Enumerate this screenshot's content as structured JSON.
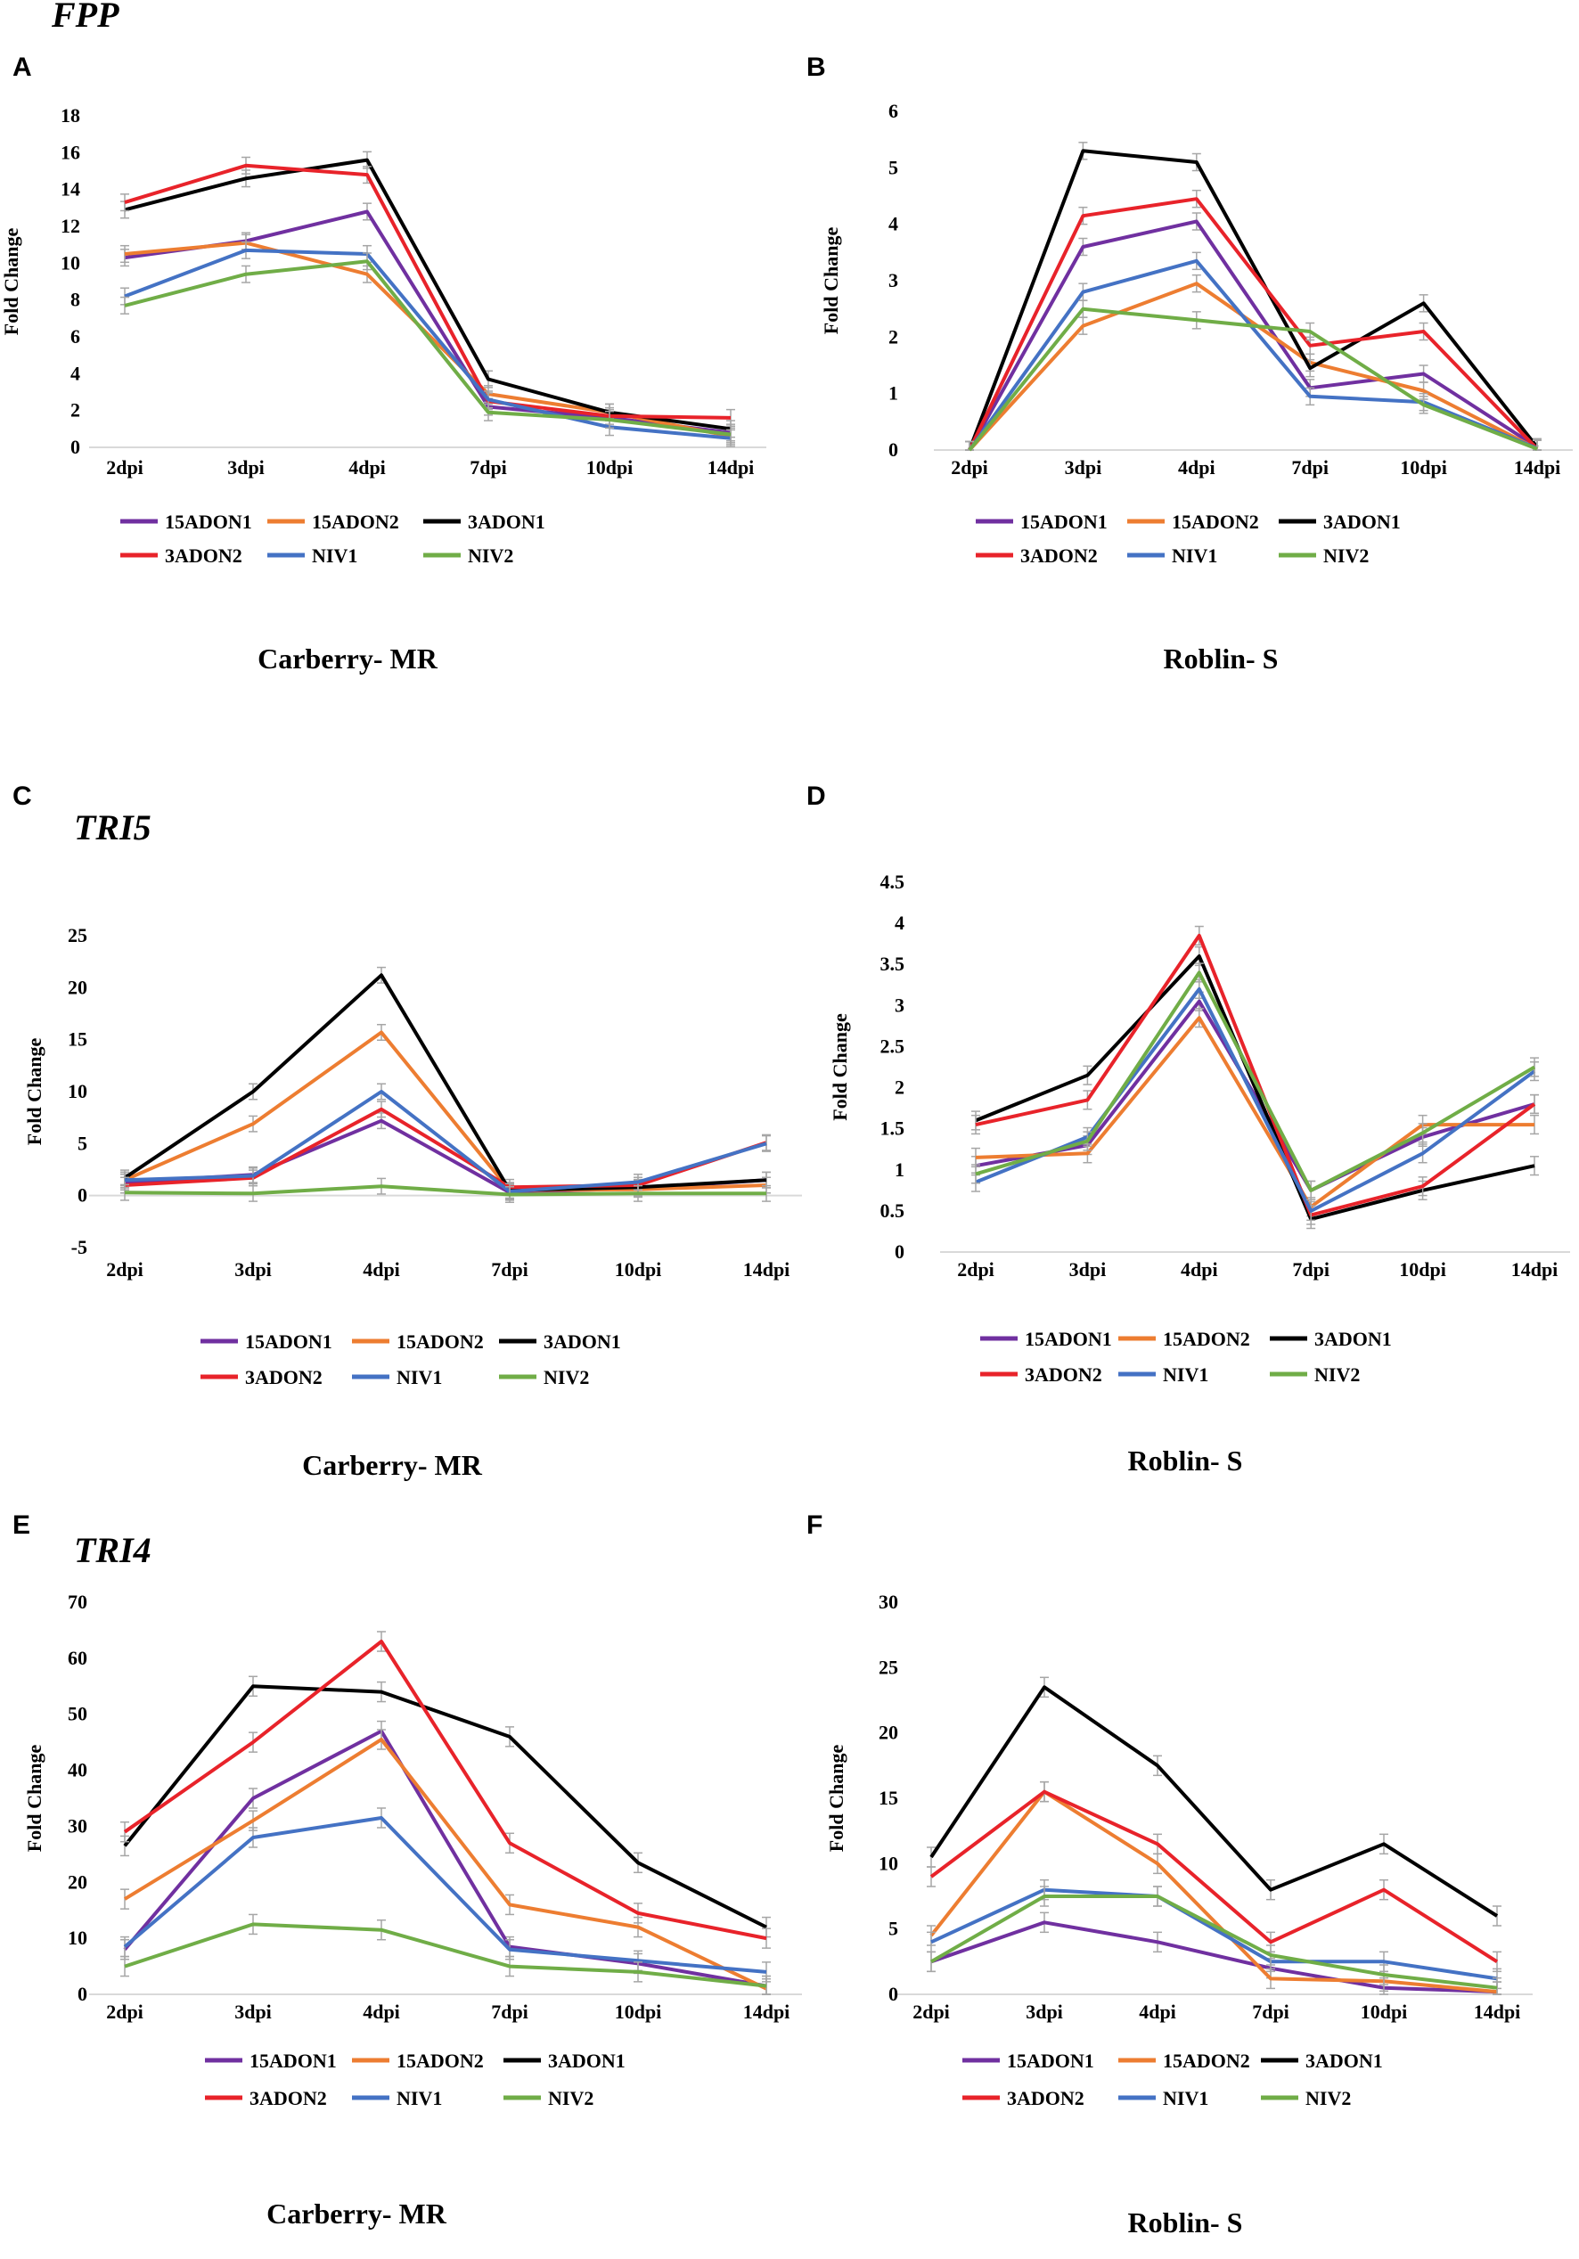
{
  "figure": {
    "series_names": [
      "15ADON1",
      "15ADON2",
      "3ADON1",
      "3ADON2",
      "NIV1",
      "NIV2"
    ],
    "series_colors": [
      "#7030A0",
      "#ED7D31",
      "#000000",
      "#E8232A",
      "#4472C4",
      "#70AD47"
    ]
  },
  "chart_data": [
    {
      "id": "A",
      "letter": "A",
      "gene": "FPP",
      "type": "line",
      "title": "",
      "xlabel": "Carberry- MR",
      "ylabel": "Fold Change",
      "categories": [
        "2dpi",
        "3dpi",
        "4dpi",
        "7dpi",
        "10dpi",
        "14dpi"
      ],
      "ylim": [
        0,
        18
      ],
      "yticks": [
        {
          "v": 0,
          "t": "0"
        },
        {
          "v": 2,
          "t": "2"
        },
        {
          "v": 4,
          "t": "4"
        },
        {
          "v": 6,
          "t": "6"
        },
        {
          "v": 8,
          "t": "8"
        },
        {
          "v": 10,
          "t": "10"
        },
        {
          "v": 12,
          "t": "12"
        },
        {
          "v": 14,
          "t": "14"
        },
        {
          "v": 16,
          "t": "16"
        },
        {
          "v": 18,
          "t": "18"
        }
      ],
      "series": [
        {
          "name": "15ADON1",
          "values": [
            10.3,
            11.2,
            12.8,
            2.2,
            1.6,
            0.8
          ]
        },
        {
          "name": "15ADON2",
          "values": [
            10.5,
            11.1,
            9.4,
            2.9,
            1.9,
            0.6
          ]
        },
        {
          "name": "3ADON1",
          "values": [
            12.9,
            14.6,
            15.6,
            3.7,
            1.9,
            1.0
          ]
        },
        {
          "name": "3ADON2",
          "values": [
            13.3,
            15.3,
            14.8,
            2.5,
            1.7,
            1.6
          ]
        },
        {
          "name": "NIV1",
          "values": [
            8.2,
            10.7,
            10.5,
            2.6,
            1.1,
            0.5
          ]
        },
        {
          "name": "NIV2",
          "values": [
            7.7,
            9.4,
            10.1,
            1.9,
            1.5,
            0.7
          ]
        }
      ]
    },
    {
      "id": "B",
      "letter": "B",
      "gene": "",
      "type": "line",
      "title": "",
      "xlabel": "Roblin- S",
      "ylabel": "Fold Change",
      "categories": [
        "2dpi",
        "3dpi",
        "4dpi",
        "7dpi",
        "10dpi",
        "14dpi"
      ],
      "ylim": [
        0,
        6
      ],
      "yticks": [
        {
          "v": 0,
          "t": "0"
        },
        {
          "v": 1,
          "t": "1"
        },
        {
          "v": 2,
          "t": "2"
        },
        {
          "v": 3,
          "t": "3"
        },
        {
          "v": 4,
          "t": "4"
        },
        {
          "v": 5,
          "t": "5"
        },
        {
          "v": 6,
          "t": "6"
        }
      ],
      "series": [
        {
          "name": "15ADON1",
          "values": [
            0,
            3.6,
            4.05,
            1.1,
            1.35,
            0.05
          ]
        },
        {
          "name": "15ADON2",
          "values": [
            0,
            2.2,
            2.95,
            1.55,
            1.05,
            0.02
          ]
        },
        {
          "name": "3ADON1",
          "values": [
            0,
            5.3,
            5.1,
            1.45,
            2.6,
            0.05
          ]
        },
        {
          "name": "3ADON2",
          "values": [
            0,
            4.15,
            4.45,
            1.85,
            2.1,
            0.02
          ]
        },
        {
          "name": "NIV1",
          "values": [
            0,
            2.8,
            3.35,
            0.95,
            0.85,
            0.03
          ]
        },
        {
          "name": "NIV2",
          "values": [
            0,
            2.5,
            2.3,
            2.1,
            0.8,
            0.02
          ]
        }
      ]
    },
    {
      "id": "C",
      "letter": "C",
      "gene": "TRI5",
      "type": "line",
      "title": "",
      "xlabel": "Carberry- MR",
      "ylabel": "Fold Change",
      "categories": [
        "2dpi",
        "3dpi",
        "4dpi",
        "7dpi",
        "10dpi",
        "14dpi"
      ],
      "ylim": [
        -5,
        25
      ],
      "yticks": [
        {
          "v": -5,
          "t": "-5"
        },
        {
          "v": 0,
          "t": "0"
        },
        {
          "v": 5,
          "t": "5"
        },
        {
          "v": 10,
          "t": "10"
        },
        {
          "v": 15,
          "t": "15"
        },
        {
          "v": 20,
          "t": "20"
        },
        {
          "v": 25,
          "t": "25"
        }
      ],
      "series": [
        {
          "name": "15ADON1",
          "values": [
            1.3,
            2.0,
            7.2,
            0.3,
            0.7,
            1.5
          ]
        },
        {
          "name": "15ADON2",
          "values": [
            1.5,
            6.9,
            15.7,
            0.5,
            0.6,
            1.0
          ]
        },
        {
          "name": "3ADON1",
          "values": [
            1.7,
            10.0,
            21.2,
            0.5,
            0.8,
            1.5
          ]
        },
        {
          "name": "3ADON2",
          "values": [
            1.0,
            1.7,
            8.3,
            0.8,
            1.0,
            5.1
          ]
        },
        {
          "name": "NIV1",
          "values": [
            1.5,
            1.9,
            10.0,
            0.4,
            1.3,
            5.0
          ]
        },
        {
          "name": "NIV2",
          "values": [
            0.3,
            0.2,
            0.9,
            0.1,
            0.2,
            0.2
          ]
        }
      ]
    },
    {
      "id": "D",
      "letter": "D",
      "gene": "",
      "type": "line",
      "title": "",
      "xlabel": "Roblin- S",
      "ylabel": "Fold Change",
      "categories": [
        "2dpi",
        "3dpi",
        "4dpi",
        "7dpi",
        "10dpi",
        "14dpi"
      ],
      "ylim": [
        0,
        4.5
      ],
      "yticks": [
        {
          "v": 0,
          "t": "0"
        },
        {
          "v": 0.5,
          "t": "0.5"
        },
        {
          "v": 1,
          "t": "1"
        },
        {
          "v": 1.5,
          "t": "1.5"
        },
        {
          "v": 2,
          "t": "2"
        },
        {
          "v": 2.5,
          "t": "2.5"
        },
        {
          "v": 3,
          "t": "3"
        },
        {
          "v": 3.5,
          "t": "3.5"
        },
        {
          "v": 4,
          "t": "4"
        },
        {
          "v": 4.5,
          "t": "4.5"
        }
      ],
      "series": [
        {
          "name": "15ADON1",
          "values": [
            1.05,
            1.3,
            3.05,
            0.75,
            1.4,
            1.8
          ]
        },
        {
          "name": "15ADON2",
          "values": [
            1.15,
            1.2,
            2.85,
            0.55,
            1.55,
            1.55
          ]
        },
        {
          "name": "3ADON1",
          "values": [
            1.6,
            2.15,
            3.6,
            0.4,
            0.75,
            1.05
          ]
        },
        {
          "name": "3ADON2",
          "values": [
            1.55,
            1.85,
            3.85,
            0.45,
            0.8,
            1.8
          ]
        },
        {
          "name": "NIV1",
          "values": [
            0.85,
            1.4,
            3.2,
            0.5,
            1.2,
            2.2
          ]
        },
        {
          "name": "NIV2",
          "values": [
            0.95,
            1.35,
            3.4,
            0.75,
            1.45,
            2.25
          ]
        }
      ]
    },
    {
      "id": "E",
      "letter": "E",
      "gene": "TRI4",
      "type": "line",
      "title": "",
      "xlabel": "Carberry- MR",
      "ylabel": "Fold Change",
      "categories": [
        "2dpi",
        "3dpi",
        "4dpi",
        "7dpi",
        "10dpi",
        "14dpi"
      ],
      "ylim": [
        0,
        70
      ],
      "yticks": [
        {
          "v": 0,
          "t": "0"
        },
        {
          "v": 10,
          "t": "10"
        },
        {
          "v": 20,
          "t": "20"
        },
        {
          "v": 30,
          "t": "30"
        },
        {
          "v": 40,
          "t": "40"
        },
        {
          "v": 50,
          "t": "50"
        },
        {
          "v": 60,
          "t": "60"
        },
        {
          "v": 70,
          "t": "70"
        }
      ],
      "series": [
        {
          "name": "15ADON1",
          "values": [
            8.0,
            35.0,
            47.0,
            8.5,
            5.5,
            1.5
          ]
        },
        {
          "name": "15ADON2",
          "values": [
            17.0,
            31.0,
            45.5,
            16.0,
            12.0,
            1.0
          ]
        },
        {
          "name": "3ADON1",
          "values": [
            26.5,
            55.0,
            54.0,
            46.0,
            23.5,
            12.0
          ]
        },
        {
          "name": "3ADON2",
          "values": [
            29.0,
            45.0,
            63.0,
            27.0,
            14.5,
            10.0
          ]
        },
        {
          "name": "NIV1",
          "values": [
            8.5,
            28.0,
            31.5,
            8.0,
            6.0,
            4.0
          ]
        },
        {
          "name": "NIV2",
          "values": [
            5.0,
            12.5,
            11.5,
            5.0,
            4.0,
            1.5
          ]
        }
      ]
    },
    {
      "id": "F",
      "letter": "F",
      "gene": "",
      "type": "line",
      "title": "",
      "xlabel": "Roblin- S",
      "ylabel": "Fold Change",
      "categories": [
        "2dpi",
        "3dpi",
        "4dpi",
        "7dpi",
        "10dpi",
        "14dpi"
      ],
      "ylim": [
        0,
        30
      ],
      "yticks": [
        {
          "v": 0,
          "t": "0"
        },
        {
          "v": 5,
          "t": "5"
        },
        {
          "v": 10,
          "t": "10"
        },
        {
          "v": 15,
          "t": "15"
        },
        {
          "v": 20,
          "t": "20"
        },
        {
          "v": 25,
          "t": "25"
        },
        {
          "v": 30,
          "t": "30"
        }
      ],
      "series": [
        {
          "name": "15ADON1",
          "values": [
            2.5,
            5.5,
            4.0,
            2.0,
            0.5,
            0.2
          ]
        },
        {
          "name": "15ADON2",
          "values": [
            4.5,
            15.5,
            10.0,
            1.2,
            1.0,
            0.2
          ]
        },
        {
          "name": "3ADON1",
          "values": [
            10.5,
            23.5,
            17.5,
            8.0,
            11.5,
            6.0
          ]
        },
        {
          "name": "3ADON2",
          "values": [
            9.0,
            15.5,
            11.5,
            4.0,
            8.0,
            2.5
          ]
        },
        {
          "name": "NIV1",
          "values": [
            4.0,
            8.0,
            7.5,
            2.5,
            2.5,
            1.2
          ]
        },
        {
          "name": "NIV2",
          "values": [
            2.5,
            7.5,
            7.5,
            3.0,
            1.5,
            0.5
          ]
        }
      ]
    }
  ]
}
